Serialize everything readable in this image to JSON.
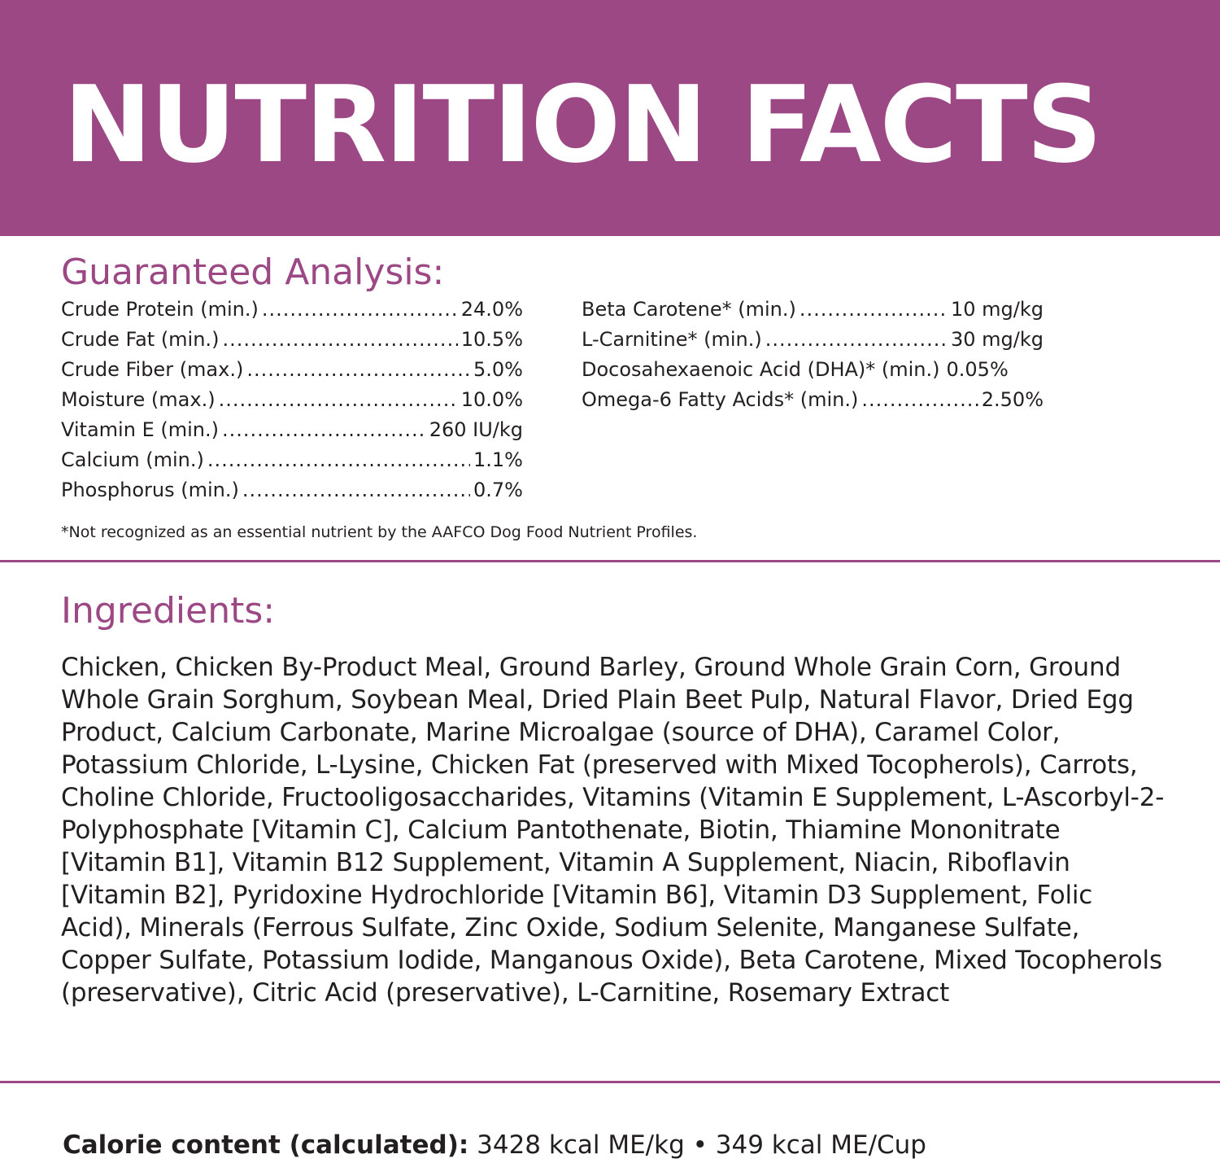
{
  "banner": {
    "title": "NUTRITION FACTS",
    "color": "#9c4884"
  },
  "guaranteed_analysis": {
    "heading": "Guaranteed Analysis:",
    "left_items": [
      {
        "label": "Crude Protein (min.)",
        "value": "24.0%"
      },
      {
        "label": "Crude Fat (min.)",
        "value": "10.5%"
      },
      {
        "label": "Crude Fiber (max.)",
        "value": "5.0%"
      },
      {
        "label": "Moisture (max.)",
        "value": "10.0%"
      },
      {
        "label": "Vitamin E (min.)",
        "value": "260 IU/kg"
      },
      {
        "label": "Calcium (min.)",
        "value": "1.1%"
      },
      {
        "label": "Phosphorus (min.)",
        "value": "0.7%"
      }
    ],
    "right_items": [
      {
        "label": "Beta Carotene* (min.)",
        "value": "10 mg/kg"
      },
      {
        "label": "L-Carnitine* (min.)",
        "value": "30 mg/kg"
      },
      {
        "label": "Docosahexaenoic Acid (DHA)* (min.)",
        "value": "0.05%"
      },
      {
        "label": "Omega-6 Fatty Acids* (min.)",
        "value": "2.50%"
      }
    ],
    "footnote": "*Not recognized as an essential nutrient by the AAFCO Dog Food Nutrient Profiles."
  },
  "ingredients": {
    "heading": "Ingredients:",
    "text": "Chicken, Chicken By-Product Meal, Ground Barley, Ground Whole Grain Corn, Ground Whole Grain Sorghum, Soybean Meal, Dried Plain Beet Pulp, Natural Flavor, Dried Egg Product, Calcium Carbonate, Marine Microalgae (source of DHA), Caramel Color, Potassium Chloride, L-Lysine, Chicken Fat (preserved with Mixed Tocopherols), Carrots, Choline Chloride, Fructooligosaccharides, Vitamins (Vitamin E Supplement, L-Ascorbyl-2-Polyphosphate [Vitamin C], Calcium Pantothenate, Biotin, Thiamine Mononitrate [Vitamin B1], Vitamin B12 Supplement, Vitamin A Supplement, Niacin, Riboflavin [Vitamin B2], Pyridoxine Hydrochloride [Vitamin B6], Vitamin D3 Supplement, Folic Acid), Minerals (Ferrous Sulfate, Zinc Oxide, Sodium Selenite, Manganese Sulfate, Copper Sulfate, Potassium Iodide, Manganous Oxide), Beta Carotene, Mixed Tocopherols (preservative), Citric Acid (preservative), L-Carnitine, Rosemary Extract"
  },
  "calorie": {
    "label": "Calorie content (calculated):",
    "value": "3428 kcal ME/kg • 349 kcal ME/Cup"
  }
}
